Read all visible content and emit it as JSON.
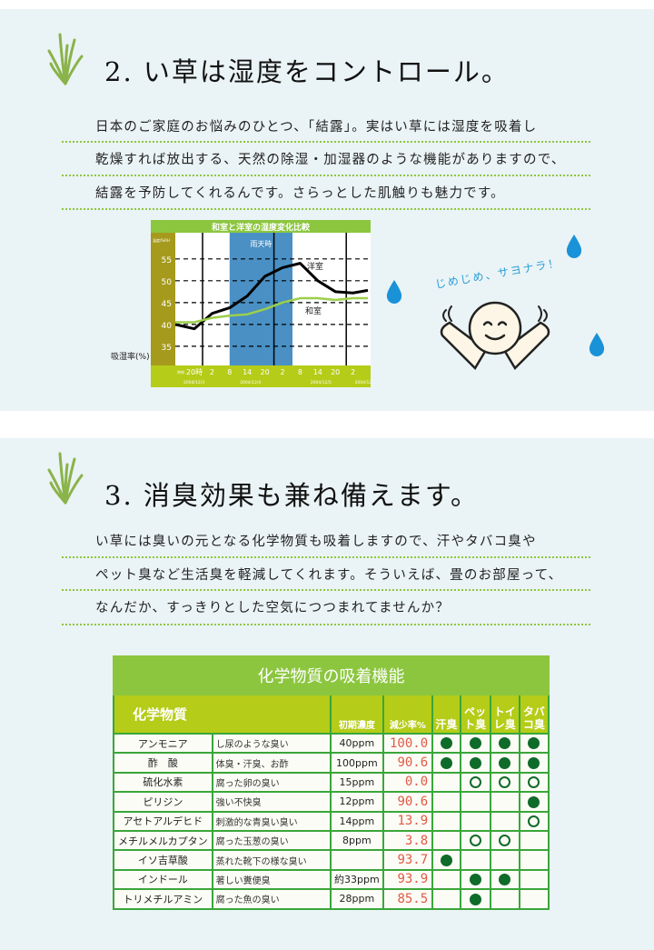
{
  "section2": {
    "title": "2.  い草は湿度をコントロール。",
    "lines": [
      "日本のご家庭のお悩みのひとつ、「結露」。実はい草には湿度を吸着し",
      "乾燥すれば放出する、天然の除湿・加湿器のような機能がありますので、",
      "結露を予防してくれるんです。さらっとした肌触りも魅力です。"
    ],
    "bubble": "じめじめ、サヨナラ！"
  },
  "chart_data": {
    "type": "line",
    "title": "和室と洋室の湿度変化比較",
    "unit_label": "温度/%RH",
    "ylabel": "吸湿率(%)",
    "ylim": [
      30.6,
      61
    ],
    "yticks": [
      35,
      40,
      45,
      50,
      55
    ],
    "grid": "dashed-horizontal",
    "band_label": "雨天時",
    "band": [
      "8",
      "2"
    ],
    "x_prefix": "時刻",
    "categories": [
      "20時",
      "2",
      "8",
      "14",
      "20",
      "2",
      "8",
      "14",
      "20",
      "2"
    ],
    "dates": [
      "2004/12/3",
      "2004/12/4",
      "2004/12/5",
      "2004/12/6"
    ],
    "series": [
      {
        "name": "洋室",
        "color": "#000000",
        "values": [
          39,
          42.5,
          43.8,
          46.5,
          51,
          53,
          54,
          50,
          47.5,
          47.2
        ]
      },
      {
        "name": "和室",
        "color": "#9ccf4a",
        "values": [
          40.5,
          41.5,
          42,
          42.3,
          43.5,
          45,
          46,
          46,
          45.6,
          46
        ]
      }
    ]
  },
  "section3": {
    "title": "3.  消臭効果も兼ね備えます。",
    "lines": [
      "い草には臭いの元となる化学物質も吸着しますので、汗やタバコ臭や",
      "ペット臭など生活臭を軽減してくれます。そういえば、畳のお部屋って、",
      "なんだか、すっきりとした空気につつまれてませんか？"
    ]
  },
  "table": {
    "title": "化学物質の吸着機能",
    "headers": {
      "substance": "化学物質",
      "conc": "初期濃度",
      "rate": "減少率%",
      "cols": [
        "汗臭",
        "ペット臭",
        "トイレ臭",
        "タバコ臭"
      ]
    },
    "rows": [
      {
        "name": "アンモニア",
        "desc": "し尿のような臭い",
        "conc": "40ppm",
        "rate": "100.0",
        "marks": [
          "filled",
          "filled",
          "filled",
          "filled"
        ]
      },
      {
        "name": "酢　酸",
        "desc": "体臭・汗臭、お酢",
        "conc": "100ppm",
        "rate": "90.6",
        "marks": [
          "filled",
          "filled",
          "filled",
          "filled"
        ]
      },
      {
        "name": "硫化水素",
        "desc": "腐った卵の臭い",
        "conc": "15ppm",
        "rate": "0.0",
        "marks": [
          "",
          "open",
          "open",
          "open"
        ]
      },
      {
        "name": "ピリジン",
        "desc": "強い不快臭",
        "conc": "12ppm",
        "rate": "90.6",
        "marks": [
          "",
          "",
          "",
          "filled"
        ]
      },
      {
        "name": "アセトアルデヒド",
        "desc": "刺激的な青臭い臭い",
        "conc": "14ppm",
        "rate": "13.9",
        "marks": [
          "",
          "",
          "",
          "open"
        ]
      },
      {
        "name": "メチルメルカプタン",
        "desc": "腐った玉葱の臭い",
        "conc": "8ppm",
        "rate": "3.8",
        "marks": [
          "",
          "open",
          "open",
          ""
        ]
      },
      {
        "name": "イソ吉草酸",
        "desc": "蒸れた靴下の様な臭い",
        "conc": "",
        "rate": "93.7",
        "marks": [
          "filled",
          "",
          "",
          ""
        ]
      },
      {
        "name": "インドール",
        "desc": "著しい糞便臭",
        "conc": "約33ppm",
        "rate": "93.9",
        "marks": [
          "",
          "filled",
          "filled",
          ""
        ]
      },
      {
        "name": "トリメチルアミン",
        "desc": "腐った魚の臭い",
        "conc": "28ppm",
        "rate": "85.5",
        "marks": [
          "",
          "filled",
          "",
          ""
        ]
      }
    ]
  }
}
